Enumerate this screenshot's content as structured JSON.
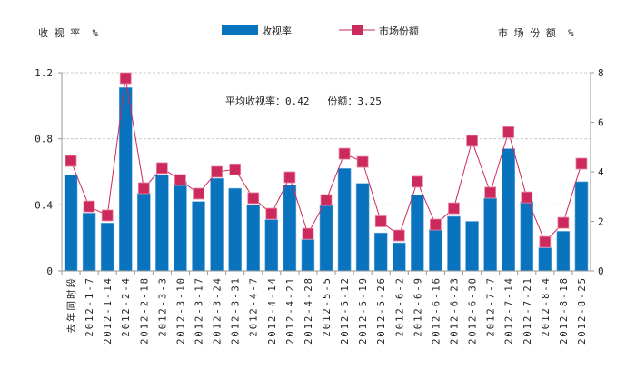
{
  "chart_data": {
    "type": "bar+line",
    "left_axis_title": "收 视 率  %",
    "right_axis_title": "市 场 份 额  %",
    "annotation": "平均收视率：0.42   份额：3.25",
    "legend": [
      {
        "name": "收视率",
        "kind": "bar",
        "color": "#0a73bd"
      },
      {
        "name": "市场份额",
        "kind": "line",
        "color": "#cc2a5c"
      }
    ],
    "left_ylim": [
      0,
      1.2
    ],
    "left_ticks": [
      "0",
      "0.4",
      "0.8",
      "1.2"
    ],
    "right_ylim": [
      0,
      8
    ],
    "right_ticks": [
      "0",
      "2",
      "4",
      "6",
      "8"
    ],
    "categories": [
      "去年同时段",
      "2012-1-7",
      "2012-1-14",
      "2012-2-4",
      "2012-2-18",
      "2012-3-3",
      "2012-3-10",
      "2012-3-17",
      "2012-3-24",
      "2012-3-31",
      "2012-4-7",
      "2012-4-14",
      "2012-4-21",
      "2012-4-28",
      "2012-5-5",
      "2012-5-12",
      "2012-5-19",
      "2012-5-26",
      "2012-6-2",
      "2012-6-9",
      "2012-6-16",
      "2012-6-23",
      "2012-6-30",
      "2012-7-7",
      "2012-7-14",
      "2012-7-21",
      "2012-8-4",
      "2012-8-18",
      "2012-8-25"
    ],
    "series": [
      {
        "name": "收视率",
        "axis": "left",
        "values": [
          0.58,
          0.35,
          0.29,
          1.11,
          0.47,
          0.58,
          0.54,
          0.42,
          0.56,
          0.5,
          0.4,
          0.31,
          0.52,
          0.19,
          0.4,
          0.62,
          0.53,
          0.23,
          0.17,
          0.46,
          0.25,
          0.33,
          0.3,
          0.44,
          0.74,
          0.42,
          0.14,
          0.24,
          0.54
        ]
      },
      {
        "name": "市场份额",
        "axis": "right",
        "values": [
          4.44,
          2.6,
          2.24,
          7.78,
          3.34,
          4.15,
          3.67,
          3.12,
          4.0,
          4.1,
          2.94,
          2.31,
          3.78,
          1.5,
          2.86,
          4.73,
          4.4,
          2.0,
          1.43,
          3.6,
          1.87,
          2.53,
          5.25,
          3.16,
          5.6,
          2.97,
          1.17,
          1.94,
          4.33
        ]
      }
    ],
    "grid": true
  }
}
